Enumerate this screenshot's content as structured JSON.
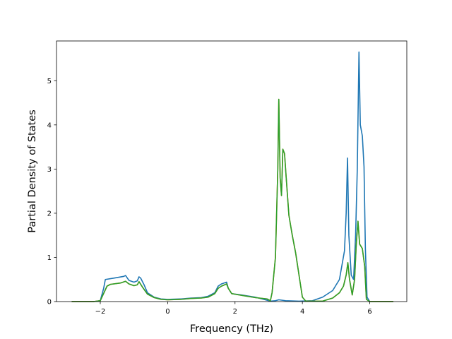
{
  "chart_data": {
    "type": "line",
    "title": "",
    "xlabel": "Frequency (THz)",
    "ylabel": "Partial Density of States",
    "xlim": [
      -3.3,
      7.1
    ],
    "ylim": [
      0,
      5.9
    ],
    "x_ticks": [
      -2,
      0,
      2,
      4,
      6
    ],
    "y_ticks": [
      0,
      1,
      2,
      3,
      4,
      5
    ],
    "grid": false,
    "legend": "none",
    "series": [
      {
        "color": "#1f77b4",
        "points": [
          [
            -2.85,
            0
          ],
          [
            -2.2,
            0
          ],
          [
            -2.0,
            0.02
          ],
          [
            -1.9,
            0.3
          ],
          [
            -1.85,
            0.5
          ],
          [
            -1.6,
            0.53
          ],
          [
            -1.3,
            0.57
          ],
          [
            -1.25,
            0.59
          ],
          [
            -1.15,
            0.48
          ],
          [
            -1.0,
            0.44
          ],
          [
            -0.9,
            0.47
          ],
          [
            -0.85,
            0.56
          ],
          [
            -0.8,
            0.53
          ],
          [
            -0.7,
            0.38
          ],
          [
            -0.6,
            0.2
          ],
          [
            -0.4,
            0.1
          ],
          [
            -0.2,
            0.06
          ],
          [
            0.0,
            0.05
          ],
          [
            0.4,
            0.06
          ],
          [
            0.7,
            0.08
          ],
          [
            1.0,
            0.09
          ],
          [
            1.2,
            0.12
          ],
          [
            1.4,
            0.2
          ],
          [
            1.5,
            0.35
          ],
          [
            1.6,
            0.4
          ],
          [
            1.75,
            0.44
          ],
          [
            1.8,
            0.3
          ],
          [
            1.9,
            0.18
          ],
          [
            2.2,
            0.15
          ],
          [
            2.6,
            0.1
          ],
          [
            2.95,
            0.03
          ],
          [
            3.05,
            0.01
          ],
          [
            3.2,
            0.02
          ],
          [
            3.3,
            0.04
          ],
          [
            3.5,
            0.02
          ],
          [
            3.9,
            0.01
          ],
          [
            4.3,
            0.02
          ],
          [
            4.6,
            0.1
          ],
          [
            4.9,
            0.25
          ],
          [
            5.1,
            0.5
          ],
          [
            5.25,
            1.15
          ],
          [
            5.3,
            2.0
          ],
          [
            5.34,
            3.25
          ],
          [
            5.38,
            1.5
          ],
          [
            5.45,
            0.6
          ],
          [
            5.52,
            0.5
          ],
          [
            5.58,
            1.5
          ],
          [
            5.63,
            3.0
          ],
          [
            5.66,
            4.6
          ],
          [
            5.68,
            5.65
          ],
          [
            5.72,
            4.0
          ],
          [
            5.78,
            3.75
          ],
          [
            5.83,
            3.05
          ],
          [
            5.87,
            1.2
          ],
          [
            5.92,
            0.1
          ],
          [
            6.0,
            0
          ],
          [
            6.7,
            0
          ]
        ]
      },
      {
        "color": "#ff7f0e",
        "points": [
          [
            -2.85,
            0
          ],
          [
            -2.2,
            0
          ],
          [
            -2.0,
            0.02
          ],
          [
            -1.8,
            0.35
          ],
          [
            -1.7,
            0.39
          ],
          [
            -1.4,
            0.42
          ],
          [
            -1.25,
            0.46
          ],
          [
            -1.15,
            0.4
          ],
          [
            -1.0,
            0.36
          ],
          [
            -0.9,
            0.38
          ],
          [
            -0.85,
            0.45
          ],
          [
            -0.75,
            0.33
          ],
          [
            -0.6,
            0.17
          ],
          [
            -0.4,
            0.09
          ],
          [
            -0.2,
            0.05
          ],
          [
            0.0,
            0.04
          ],
          [
            0.4,
            0.05
          ],
          [
            0.7,
            0.07
          ],
          [
            1.0,
            0.08
          ],
          [
            1.2,
            0.1
          ],
          [
            1.4,
            0.18
          ],
          [
            1.5,
            0.3
          ],
          [
            1.6,
            0.35
          ],
          [
            1.75,
            0.4
          ],
          [
            1.8,
            0.3
          ],
          [
            1.9,
            0.18
          ],
          [
            2.2,
            0.14
          ],
          [
            2.6,
            0.09
          ],
          [
            2.95,
            0.06
          ],
          [
            3.05,
            0.02
          ],
          [
            3.1,
            0.2
          ],
          [
            3.2,
            1.0
          ],
          [
            3.27,
            3.0
          ],
          [
            3.3,
            4.58
          ],
          [
            3.34,
            2.8
          ],
          [
            3.38,
            2.4
          ],
          [
            3.42,
            3.45
          ],
          [
            3.47,
            3.35
          ],
          [
            3.52,
            2.8
          ],
          [
            3.6,
            1.95
          ],
          [
            3.7,
            1.5
          ],
          [
            3.8,
            1.1
          ],
          [
            3.9,
            0.6
          ],
          [
            4.0,
            0.1
          ],
          [
            4.1,
            0.01
          ],
          [
            4.6,
            0.01
          ],
          [
            4.9,
            0.08
          ],
          [
            5.1,
            0.2
          ],
          [
            5.22,
            0.35
          ],
          [
            5.3,
            0.6
          ],
          [
            5.35,
            0.88
          ],
          [
            5.4,
            0.5
          ],
          [
            5.48,
            0.15
          ],
          [
            5.55,
            0.5
          ],
          [
            5.6,
            1.3
          ],
          [
            5.65,
            1.82
          ],
          [
            5.7,
            1.3
          ],
          [
            5.78,
            1.2
          ],
          [
            5.85,
            0.8
          ],
          [
            5.9,
            0.05
          ],
          [
            6.0,
            0
          ],
          [
            6.7,
            0
          ]
        ]
      },
      {
        "color": "#2ca02c",
        "points": [
          [
            -2.85,
            0
          ],
          [
            -2.2,
            0
          ],
          [
            -2.0,
            0.02
          ],
          [
            -1.8,
            0.35
          ],
          [
            -1.7,
            0.39
          ],
          [
            -1.4,
            0.42
          ],
          [
            -1.25,
            0.46
          ],
          [
            -1.15,
            0.4
          ],
          [
            -1.0,
            0.36
          ],
          [
            -0.9,
            0.38
          ],
          [
            -0.85,
            0.45
          ],
          [
            -0.75,
            0.33
          ],
          [
            -0.6,
            0.17
          ],
          [
            -0.4,
            0.09
          ],
          [
            -0.2,
            0.05
          ],
          [
            0.0,
            0.04
          ],
          [
            0.4,
            0.05
          ],
          [
            0.7,
            0.07
          ],
          [
            1.0,
            0.08
          ],
          [
            1.2,
            0.1
          ],
          [
            1.4,
            0.18
          ],
          [
            1.5,
            0.3
          ],
          [
            1.6,
            0.35
          ],
          [
            1.75,
            0.4
          ],
          [
            1.8,
            0.3
          ],
          [
            1.9,
            0.18
          ],
          [
            2.2,
            0.14
          ],
          [
            2.6,
            0.09
          ],
          [
            2.95,
            0.06
          ],
          [
            3.05,
            0.02
          ],
          [
            3.1,
            0.2
          ],
          [
            3.2,
            1.0
          ],
          [
            3.27,
            3.0
          ],
          [
            3.3,
            4.58
          ],
          [
            3.34,
            2.8
          ],
          [
            3.38,
            2.4
          ],
          [
            3.42,
            3.45
          ],
          [
            3.47,
            3.35
          ],
          [
            3.52,
            2.8
          ],
          [
            3.6,
            1.95
          ],
          [
            3.7,
            1.5
          ],
          [
            3.8,
            1.1
          ],
          [
            3.9,
            0.6
          ],
          [
            4.0,
            0.1
          ],
          [
            4.1,
            0.01
          ],
          [
            4.6,
            0.01
          ],
          [
            4.9,
            0.08
          ],
          [
            5.1,
            0.2
          ],
          [
            5.22,
            0.35
          ],
          [
            5.3,
            0.6
          ],
          [
            5.35,
            0.88
          ],
          [
            5.4,
            0.5
          ],
          [
            5.48,
            0.15
          ],
          [
            5.55,
            0.5
          ],
          [
            5.6,
            1.3
          ],
          [
            5.65,
            1.82
          ],
          [
            5.7,
            1.3
          ],
          [
            5.78,
            1.2
          ],
          [
            5.85,
            0.8
          ],
          [
            5.9,
            0.05
          ],
          [
            6.0,
            0
          ],
          [
            6.7,
            0
          ]
        ]
      }
    ]
  }
}
